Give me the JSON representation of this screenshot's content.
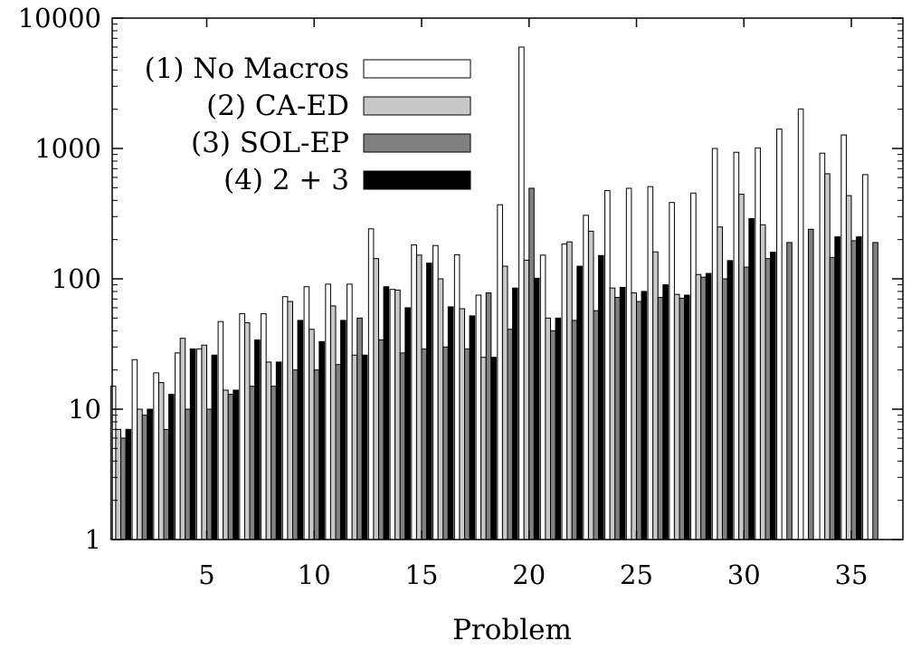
{
  "chart_data": {
    "type": "bar",
    "title": "",
    "xlabel": "Problem",
    "ylabel": "",
    "yscale": "log",
    "ylim": [
      1,
      10000
    ],
    "xlim": [
      0.6,
      37.4
    ],
    "grid": false,
    "legend_position": "top-left",
    "y_ticks": [
      {
        "value": 1,
        "label": "1"
      },
      {
        "value": 10,
        "label": "10"
      },
      {
        "value": 100,
        "label": "100"
      },
      {
        "value": 1000,
        "label": "1000"
      },
      {
        "value": 10000,
        "label": "10000"
      }
    ],
    "x_ticks": [
      {
        "value": 5,
        "label": "5"
      },
      {
        "value": 10,
        "label": "10"
      },
      {
        "value": 15,
        "label": "15"
      },
      {
        "value": 20,
        "label": "20"
      },
      {
        "value": 25,
        "label": "25"
      },
      {
        "value": 30,
        "label": "30"
      },
      {
        "value": 35,
        "label": "35"
      }
    ],
    "categories": [
      1,
      2,
      3,
      4,
      5,
      6,
      7,
      8,
      9,
      10,
      11,
      12,
      13,
      14,
      15,
      16,
      17,
      18,
      19,
      20,
      21,
      22,
      23,
      24,
      25,
      26,
      27,
      28,
      29,
      30,
      31,
      32,
      33,
      34,
      35,
      36
    ],
    "series": [
      {
        "name": "(1) No Macros",
        "color": "#ffffff",
        "values": [
          15,
          24,
          19,
          27,
          29,
          47,
          54,
          54,
          73,
          87,
          91,
          91,
          242,
          83,
          182,
          180,
          153,
          75,
          370,
          6000,
          152,
          185,
          307,
          475,
          495,
          510,
          385,
          455,
          1000,
          935,
          1010,
          1410,
          2010,
          920,
          1270,
          630
        ]
      },
      {
        "name": "(2) CA-ED",
        "color": "#c8c8c8",
        "values": [
          7,
          10,
          16,
          35,
          31,
          14,
          46,
          23,
          67,
          41,
          62,
          26,
          143,
          82,
          152,
          100,
          59,
          25,
          125,
          139,
          50,
          192,
          232,
          85,
          78,
          161,
          76,
          108,
          250,
          445,
          260,
          null,
          null,
          640,
          435,
          null
        ]
      },
      {
        "name": "(3) SOL-EP",
        "color": "#808080",
        "values": [
          6,
          9,
          7,
          10,
          10,
          13,
          15,
          15,
          20,
          20,
          22,
          50,
          34,
          27,
          29,
          30,
          29,
          78,
          41,
          495,
          40,
          48,
          57,
          72,
          67,
          72,
          71,
          103,
          100,
          123,
          143,
          190,
          240,
          146,
          196,
          190
        ]
      },
      {
        "name": "(4) 2 + 3",
        "color": "#000000",
        "values": [
          7,
          10,
          13,
          29,
          26,
          14,
          34,
          23,
          48,
          33,
          48,
          26,
          87,
          60,
          132,
          61,
          52,
          25,
          85,
          101,
          50,
          125,
          151,
          86,
          80,
          90,
          75,
          110,
          138,
          290,
          160,
          null,
          null,
          210,
          210,
          null
        ]
      }
    ]
  }
}
